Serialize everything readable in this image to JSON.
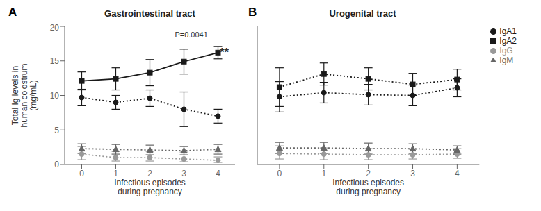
{
  "chart_data": [
    {
      "type": "line",
      "title": "Gastrointestinal tract",
      "xlabel": "Infectious episodes\nduring pregnancy",
      "ylabel": "Total Ig levels in\nhuman colostrum\n(mg/mL)",
      "x": [
        0,
        1,
        2,
        3,
        4
      ],
      "xlim": [
        -0.5,
        4.5
      ],
      "xticks": [
        0,
        1,
        2,
        3,
        4
      ],
      "ylim": [
        0,
        20
      ],
      "yticks": [
        0,
        5,
        10,
        15,
        20
      ],
      "grid": false,
      "series": [
        {
          "name": "IgA1",
          "color": "#1a1a1a",
          "marker": "circle",
          "line_style": "dotted",
          "values": [
            9.7,
            9.0,
            9.6,
            8.0,
            7.0
          ],
          "yerr_low": [
            1.2,
            1.0,
            1.2,
            2.5,
            1.0
          ],
          "yerr_high": [
            1.2,
            1.0,
            1.2,
            2.5,
            1.0
          ]
        },
        {
          "name": "IgA2",
          "color": "#1a1a1a",
          "marker": "square",
          "line_style": "solid",
          "values": [
            12.1,
            12.4,
            13.3,
            14.9,
            16.2
          ],
          "yerr_low": [
            1.3,
            1.6,
            1.9,
            1.8,
            0.9
          ],
          "yerr_high": [
            1.3,
            1.6,
            1.9,
            1.8,
            0.9
          ]
        },
        {
          "name": "IgG",
          "color": "#999999",
          "marker": "circle",
          "line_style": "dotted",
          "values": [
            1.5,
            1.0,
            1.0,
            0.8,
            0.6
          ],
          "yerr_low": [
            0.8,
            0.5,
            0.5,
            0.4,
            0.3
          ],
          "yerr_high": [
            1.1,
            0.9,
            0.9,
            1.0,
            0.5
          ]
        },
        {
          "name": "IgM",
          "color": "#666666",
          "marker": "triangle",
          "line_style": "dotted",
          "values": [
            2.3,
            2.2,
            2.1,
            2.0,
            2.2
          ],
          "yerr_low": [
            0.7,
            0.7,
            0.7,
            0.6,
            0.7
          ],
          "yerr_high": [
            0.7,
            0.7,
            0.7,
            0.6,
            0.7
          ]
        }
      ],
      "annotations": [
        {
          "text": "A"
        },
        {
          "text": "P=0.0041",
          "x": 3.7,
          "y": 19.2
        },
        {
          "text": "**",
          "x": 4.05,
          "y": 16.2
        }
      ]
    },
    {
      "type": "line",
      "title": "Urogenital tract",
      "xlabel": "Infectious episodes\nduring pregnancy",
      "x": [
        0,
        1,
        2,
        3,
        4
      ],
      "xlim": [
        -0.5,
        4.5
      ],
      "xticks": [
        0,
        1,
        2,
        3,
        4
      ],
      "ylim": [
        0,
        20
      ],
      "yticks": [
        0,
        5,
        10,
        15,
        20
      ],
      "grid": false,
      "tick_labels": "x",
      "legend": "right",
      "series": [
        {
          "name": "IgA1",
          "color": "#1a1a1a",
          "marker": "circle",
          "line_style": "dotted",
          "values": [
            9.8,
            10.4,
            10.1,
            10.0,
            11.1
          ],
          "yerr_low": [
            2.2,
            1.5,
            1.5,
            1.5,
            1.3
          ],
          "yerr_high": [
            2.2,
            1.5,
            1.5,
            1.5,
            1.3
          ]
        },
        {
          "name": "IgA2",
          "color": "#1a1a1a",
          "marker": "square",
          "line_style": "dotted",
          "values": [
            11.2,
            13.1,
            12.4,
            11.6,
            12.3
          ],
          "yerr_low": [
            2.8,
            1.6,
            1.6,
            1.6,
            1.5
          ],
          "yerr_high": [
            2.8,
            1.6,
            1.6,
            1.6,
            1.5
          ]
        },
        {
          "name": "IgG",
          "color": "#999999",
          "marker": "circle",
          "line_style": "dotted",
          "values": [
            1.6,
            1.5,
            1.4,
            1.4,
            1.5
          ],
          "yerr_low": [
            0.8,
            0.8,
            0.7,
            0.6,
            0.6
          ],
          "yerr_high": [
            1.1,
            0.9,
            0.9,
            0.8,
            0.8
          ]
        },
        {
          "name": "IgM",
          "color": "#666666",
          "marker": "triangle",
          "line_style": "dotted",
          "values": [
            2.4,
            2.4,
            2.3,
            2.3,
            2.1
          ],
          "yerr_low": [
            0.8,
            0.8,
            0.8,
            0.7,
            0.6
          ],
          "yerr_high": [
            0.8,
            0.8,
            0.8,
            0.7,
            0.6
          ]
        }
      ],
      "annotations": [
        {
          "text": "B"
        }
      ]
    }
  ]
}
